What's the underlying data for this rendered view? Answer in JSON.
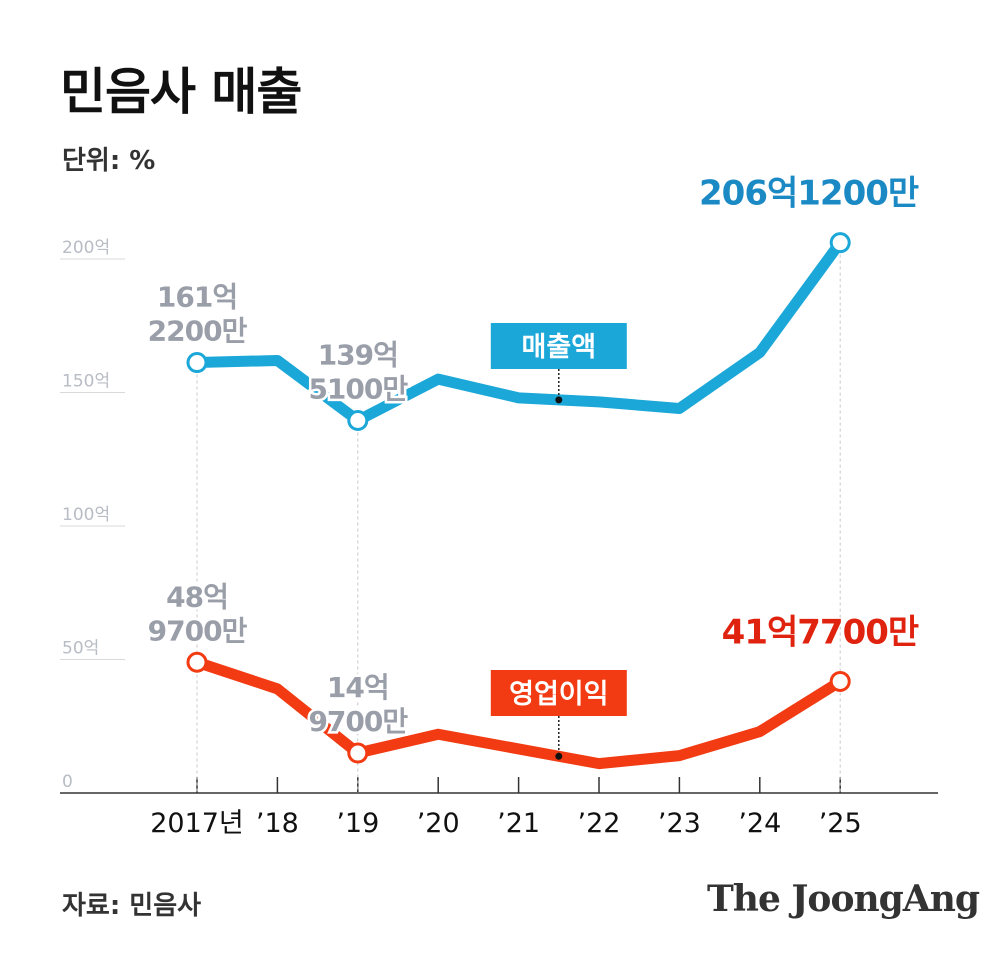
{
  "header": {
    "title": "민음사 매출",
    "unit": "단위: %"
  },
  "footer": {
    "source": "자료: 민음사",
    "brand": "The JoongAng"
  },
  "colors": {
    "revenue": "#1ba7d8",
    "profit": "#f23b12",
    "revenue_final_label": "#1b8ac4",
    "profit_final_label": "#e0230f",
    "annotation": "#999ea8",
    "grid": "#d9d9d9",
    "axis": "#333333"
  },
  "chart_data": {
    "type": "line",
    "title": "민음사 매출",
    "unit": "단위: %",
    "x": [
      "2017년",
      "’18",
      "’19",
      "’20",
      "’21",
      "’22",
      "’23",
      "’24",
      "’25"
    ],
    "y_ticks": [
      {
        "value": 0,
        "label": "0"
      },
      {
        "value": 50,
        "label": "50억"
      },
      {
        "value": 100,
        "label": "100억"
      },
      {
        "value": 150,
        "label": "150억"
      },
      {
        "value": 200,
        "label": "200억"
      }
    ],
    "ylim": [
      0,
      215
    ],
    "series": [
      {
        "name": "매출액",
        "values": [
          161.22,
          162,
          139.51,
          155,
          148,
          146.5,
          144,
          165,
          206.12
        ],
        "legend_at": 4.5,
        "point_labels": [
          {
            "index": 0,
            "lines": [
              "161억",
              "2200만"
            ]
          },
          {
            "index": 2,
            "lines": [
              "139억",
              "5100만"
            ]
          },
          {
            "index": 8,
            "lines": [
              "206억1200만"
            ],
            "emphasis": true
          }
        ]
      },
      {
        "name": "영업이익",
        "values": [
          48.97,
          39,
          14.97,
          22,
          16.5,
          11,
          14,
          23,
          41.77
        ],
        "legend_at": 4.5,
        "point_labels": [
          {
            "index": 0,
            "lines": [
              "48억",
              "9700만"
            ]
          },
          {
            "index": 2,
            "lines": [
              "14억",
              "9700만"
            ]
          },
          {
            "index": 8,
            "lines": [
              "41억7700만"
            ],
            "emphasis": true
          }
        ]
      }
    ],
    "grid": true
  }
}
